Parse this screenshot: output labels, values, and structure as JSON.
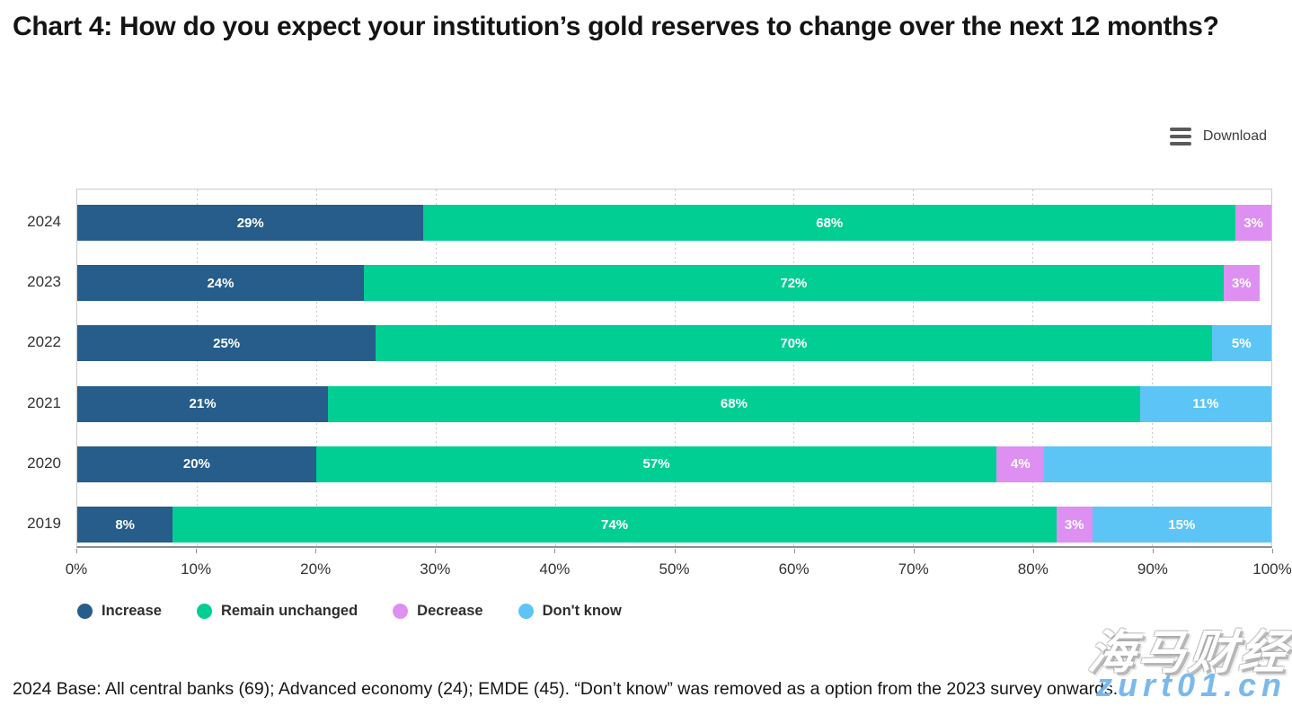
{
  "page": {
    "title": "Chart 4: How do you expect your institution’s gold reserves to change over the next 12 months?",
    "download_label": "Download",
    "footnote": "2024 Base: All central banks (69); Advanced economy (24); EMDE (45). “Don’t know” was removed as a option from the 2023 survey onwards.",
    "watermark": {
      "cn_text": "海马财经",
      "domain_text": "zurt01.cn"
    }
  },
  "chart_data": {
    "type": "bar",
    "orientation": "horizontal-stacked",
    "title": "Chart 4: How do you expect your institution’s gold reserves to change over the next 12 months?",
    "categories": [
      "2024",
      "2023",
      "2022",
      "2021",
      "2020",
      "2019"
    ],
    "series": [
      {
        "name": "Increase",
        "color": "#265d8a",
        "values": [
          29,
          24,
          25,
          21,
          20,
          8
        ]
      },
      {
        "name": "Remain unchanged",
        "color": "#00ce92",
        "values": [
          68,
          72,
          70,
          68,
          57,
          74
        ]
      },
      {
        "name": "Decrease",
        "color": "#dd90f1",
        "values": [
          3,
          3,
          0,
          0,
          4,
          3
        ]
      },
      {
        "name": "Don't know",
        "color": "#5dc4f6",
        "values": [
          0,
          0,
          5,
          11,
          19,
          15
        ]
      }
    ],
    "bar_labels": [
      [
        "29%",
        "68%",
        "3%",
        ""
      ],
      [
        "24%",
        "72%",
        "3%",
        ""
      ],
      [
        "25%",
        "70%",
        "",
        "5%"
      ],
      [
        "21%",
        "68%",
        "",
        "11%"
      ],
      [
        "20%",
        "57%",
        "4%",
        ""
      ],
      [
        "8%",
        "74%",
        "3%",
        "15%"
      ]
    ],
    "x_ticks": [
      "0%",
      "10%",
      "20%",
      "30%",
      "40%",
      "50%",
      "60%",
      "70%",
      "80%",
      "90%",
      "100%"
    ],
    "xlim": [
      0,
      100
    ],
    "grid": "dotted-vertical",
    "legend_position": "bottom"
  }
}
